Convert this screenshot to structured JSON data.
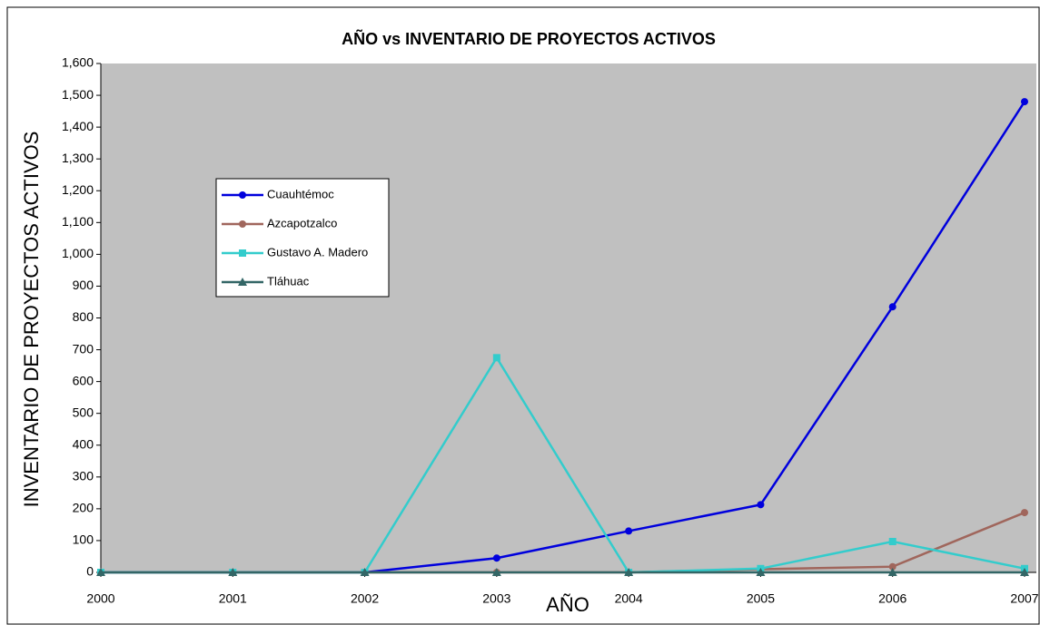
{
  "chart_data": {
    "type": "line",
    "title": "AÑO vs INVENTARIO DE PROYECTOS ACTIVOS",
    "xlabel": "AÑO",
    "ylabel": "INVENTARIO DE PROYECTOS ACTIVOS",
    "x": [
      2000,
      2001,
      2002,
      2003,
      2004,
      2005,
      2006,
      2007
    ],
    "xlim": [
      2000,
      2007
    ],
    "xticks": [
      2000,
      2001,
      2002,
      2003,
      2004,
      2005,
      2006,
      2007
    ],
    "ylim": [
      0,
      1600
    ],
    "yticks": [
      0,
      100,
      200,
      300,
      400,
      500,
      600,
      700,
      800,
      900,
      {
        "value": 1000,
        "label": "1,000"
      },
      {
        "value": 1100,
        "label": "1,100"
      },
      {
        "value": 1200,
        "label": "1,200"
      },
      {
        "value": 1300,
        "label": "1,300"
      },
      {
        "value": 1400,
        "label": "1,400"
      },
      {
        "value": 1500,
        "label": "1,500"
      },
      {
        "value": 1600,
        "label": "1,600"
      }
    ],
    "series": [
      {
        "name": "Cuauhtémoc",
        "color": "#0000dd",
        "marker": "circle",
        "values": [
          0,
          0,
          0,
          45,
          130,
          213,
          835,
          1480
        ]
      },
      {
        "name": "Azcapotzalco",
        "color": "#a0665c",
        "marker": "circle",
        "values": [
          0,
          0,
          0,
          0,
          0,
          10,
          18,
          188
        ]
      },
      {
        "name": "Gustavo A. Madero",
        "color": "#33cccc",
        "marker": "square",
        "values": [
          0,
          0,
          0,
          675,
          0,
          12,
          97,
          12
        ]
      },
      {
        "name": "Tláhuac",
        "color": "#336666",
        "marker": "triangle",
        "values": [
          0,
          0,
          0,
          0,
          0,
          0,
          0,
          0
        ]
      }
    ]
  }
}
